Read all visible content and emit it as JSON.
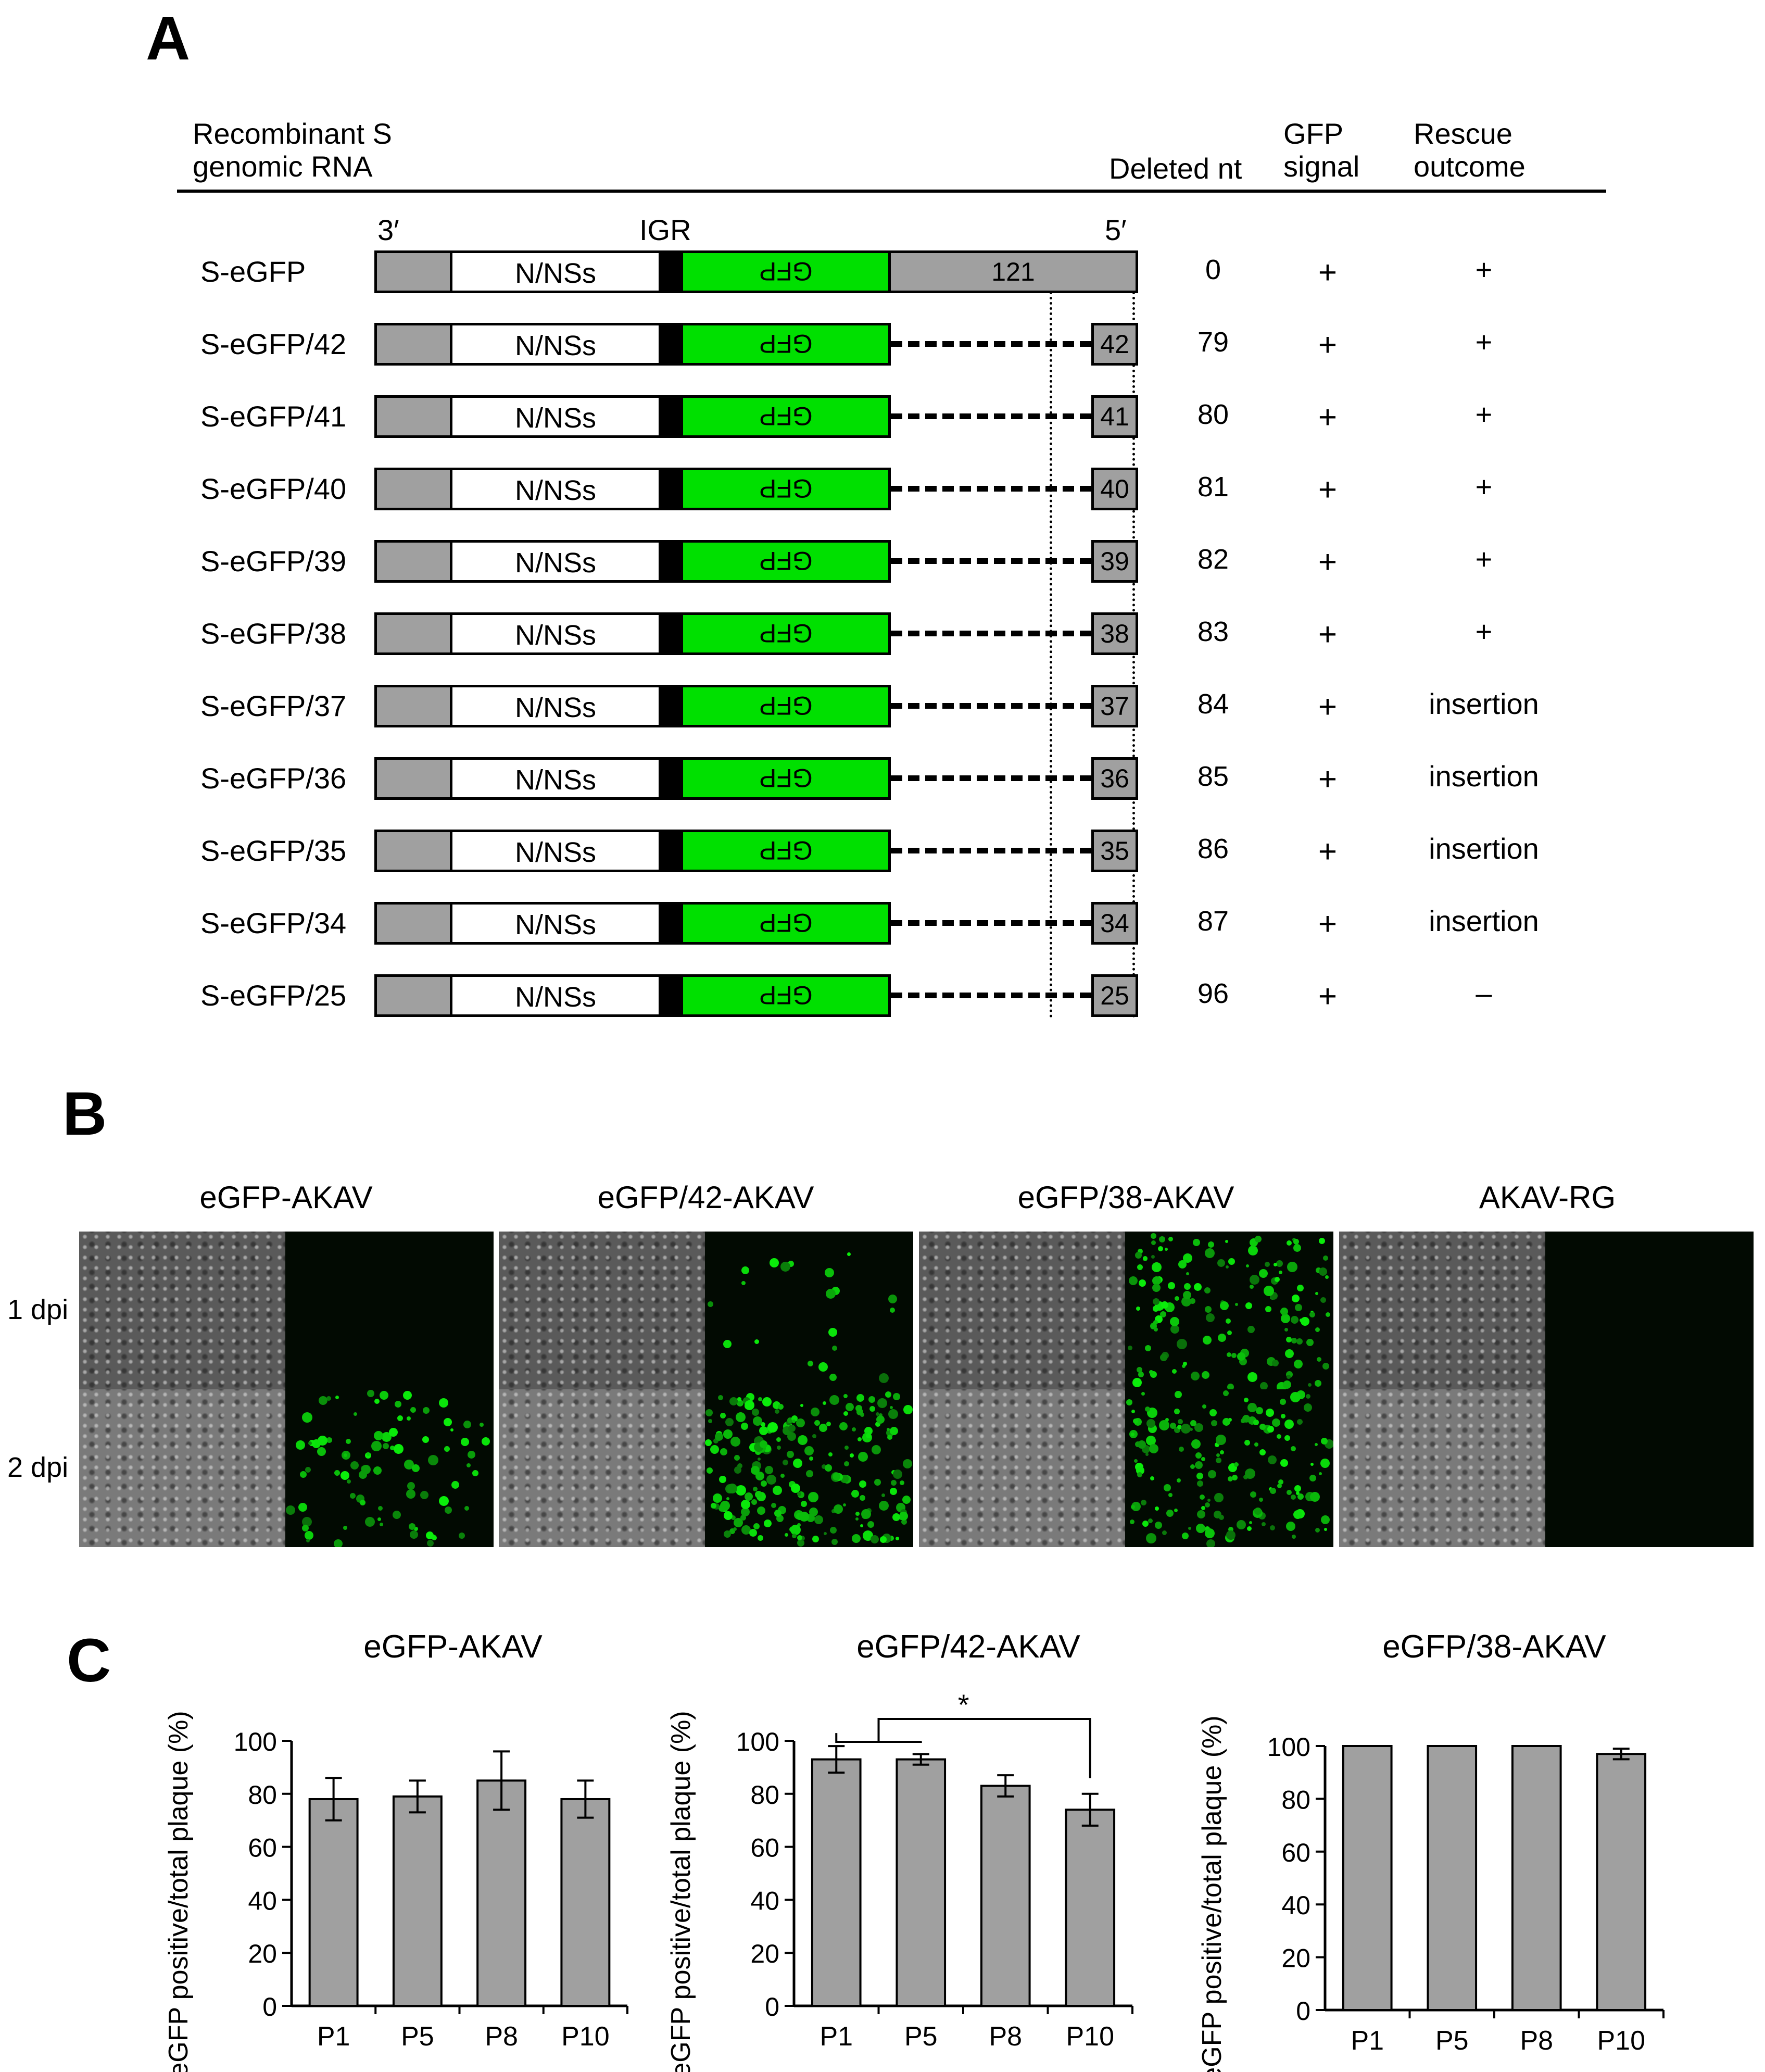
{
  "panelA": {
    "letter": "A",
    "headers": {
      "construct_line1": "Recombinant S",
      "construct_line2": "genomic RNA",
      "deleted": "Deleted nt",
      "gfp_line1": "GFP",
      "gfp_line2": "signal",
      "rescue_line1": "Rescue",
      "rescue_line2": "outcome"
    },
    "diagram_labels": {
      "three_prime": "3′",
      "igr": "IGR",
      "five_prime": "5′"
    },
    "segment_labels": {
      "nnss": "N/NSs",
      "gfp": "GFP"
    },
    "rows": [
      {
        "name": "S-eGFP",
        "utr": "121",
        "deleted": "0",
        "gfp": "+",
        "rescue": "+"
      },
      {
        "name": "S-eGFP/42",
        "utr": "42",
        "deleted": "79",
        "gfp": "+",
        "rescue": "+"
      },
      {
        "name": "S-eGFP/41",
        "utr": "41",
        "deleted": "80",
        "gfp": "+",
        "rescue": "+"
      },
      {
        "name": "S-eGFP/40",
        "utr": "40",
        "deleted": "81",
        "gfp": "+",
        "rescue": "+"
      },
      {
        "name": "S-eGFP/39",
        "utr": "39",
        "deleted": "82",
        "gfp": "+",
        "rescue": "+"
      },
      {
        "name": "S-eGFP/38",
        "utr": "38",
        "deleted": "83",
        "gfp": "+",
        "rescue": "+"
      },
      {
        "name": "S-eGFP/37",
        "utr": "37",
        "deleted": "84",
        "gfp": "+",
        "rescue": "insertion"
      },
      {
        "name": "S-eGFP/36",
        "utr": "36",
        "deleted": "85",
        "gfp": "+",
        "rescue": "insertion"
      },
      {
        "name": "S-eGFP/35",
        "utr": "35",
        "deleted": "86",
        "gfp": "+",
        "rescue": "insertion"
      },
      {
        "name": "S-eGFP/34",
        "utr": "34",
        "deleted": "87",
        "gfp": "+",
        "rescue": "insertion"
      },
      {
        "name": "S-eGFP/25",
        "utr": "25",
        "deleted": "96",
        "gfp": "+",
        "rescue": "–"
      }
    ]
  },
  "panelB": {
    "letter": "B",
    "columns": [
      "eGFP-AKAV",
      "eGFP/42-AKAV",
      "eGFP/38-AKAV",
      "AKAV-RG"
    ],
    "rows": [
      "1 dpi",
      "2 dpi"
    ],
    "fluorescence_level": [
      [
        0.0,
        0.08,
        0.55,
        0.0
      ],
      [
        0.35,
        0.85,
        0.6,
        0.0
      ]
    ]
  },
  "panelC": {
    "letter": "C",
    "ylabel": "eGFP positive/total plaque (%)",
    "significance_marker": "*",
    "colors": {
      "bar": "#a0a0a0"
    }
  },
  "chart_data": [
    {
      "type": "bar",
      "title": "eGFP-AKAV",
      "categories": [
        "P1",
        "P5",
        "P8",
        "P10"
      ],
      "values": [
        78,
        79,
        85,
        78
      ],
      "errors": [
        8,
        6,
        11,
        7
      ],
      "ylabel": "eGFP positive/total plaque (%)",
      "ylim": [
        0,
        100
      ],
      "yticks": [
        "0",
        "20",
        "40",
        "60",
        "80",
        "100"
      ]
    },
    {
      "type": "bar",
      "title": "eGFP/42-AKAV",
      "categories": [
        "P1",
        "P5",
        "P8",
        "P10"
      ],
      "values": [
        93,
        93,
        83,
        74
      ],
      "errors": [
        5,
        2,
        4,
        6
      ],
      "ylabel": "eGFP positive/total plaque (%)",
      "ylim": [
        0,
        100
      ],
      "yticks": [
        "0",
        "20",
        "40",
        "60",
        "80",
        "100"
      ],
      "significance": {
        "groups": [
          [
            "P1",
            "P5"
          ],
          [
            "P10"
          ]
        ],
        "label": "*"
      }
    },
    {
      "type": "bar",
      "title": "eGFP/38-AKAV",
      "categories": [
        "P1",
        "P5",
        "P8",
        "P10"
      ],
      "values": [
        100,
        100,
        100,
        97
      ],
      "errors": [
        0,
        0,
        0,
        2
      ],
      "ylabel": "eGFP positive/total plaque (%)",
      "ylim": [
        0,
        100
      ],
      "yticks": [
        "0",
        "20",
        "40",
        "60",
        "80",
        "100"
      ]
    }
  ]
}
